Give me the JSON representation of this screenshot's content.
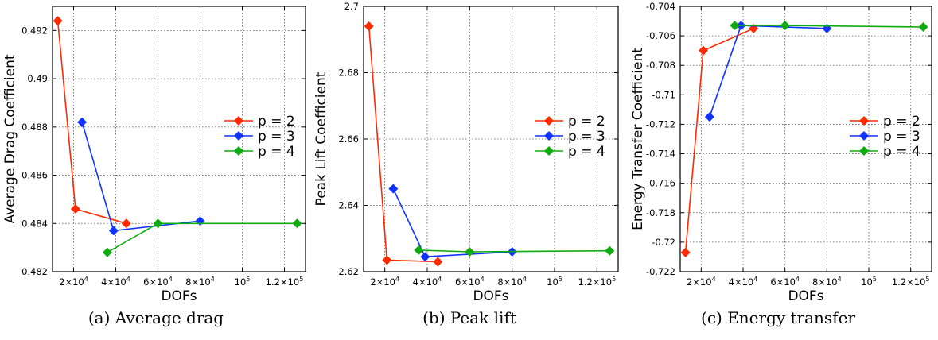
{
  "captions": [
    "(a) Average drag",
    "(b) Peak lift",
    "(c) Energy transfer"
  ],
  "chart_data": [
    {
      "type": "line",
      "xlabel": "DOFs",
      "ylabel": "Average Drag Coefficient",
      "xlim": [
        10000,
        130000
      ],
      "ylim": [
        0.482,
        0.493
      ],
      "x_ticks": [
        {
          "value": 20000,
          "label": "2×10",
          "exp": "4"
        },
        {
          "value": 40000,
          "label": "4×10",
          "exp": "4"
        },
        {
          "value": 60000,
          "label": "6×10",
          "exp": "4"
        },
        {
          "value": 80000,
          "label": "8×10",
          "exp": "4"
        },
        {
          "value": 100000,
          "label": "10",
          "exp": "5"
        },
        {
          "value": 120000,
          "label": "1.2×10",
          "exp": "5"
        }
      ],
      "y_ticks": [
        {
          "value": 0.482,
          "label": "0.482"
        },
        {
          "value": 0.484,
          "label": "0.484"
        },
        {
          "value": 0.486,
          "label": "0.486"
        },
        {
          "value": 0.488,
          "label": "0.488"
        },
        {
          "value": 0.49,
          "label": "0.49"
        },
        {
          "value": 0.492,
          "label": "0.492"
        }
      ],
      "grid": true,
      "legend_position": "right",
      "series": [
        {
          "name": "p = 2",
          "color": "#ff2a00",
          "x": [
            12500,
            20900,
            45000
          ],
          "y": [
            0.4924,
            0.4846,
            0.484
          ]
        },
        {
          "name": "p = 3",
          "color": "#1133ff",
          "x": [
            24000,
            39000,
            80000
          ],
          "y": [
            0.4882,
            0.4837,
            0.4841
          ]
        },
        {
          "name": "p = 4",
          "color": "#11aa11",
          "x": [
            36000,
            60000,
            126000
          ],
          "y": [
            0.4828,
            0.484,
            0.484
          ]
        }
      ]
    },
    {
      "type": "line",
      "xlabel": "DOFs",
      "ylabel": "Peak Lift Coefficient",
      "xlim": [
        10000,
        130000
      ],
      "ylim": [
        2.62,
        2.7
      ],
      "x_ticks": [
        {
          "value": 20000,
          "label": "2×10",
          "exp": "4"
        },
        {
          "value": 40000,
          "label": "4×10",
          "exp": "4"
        },
        {
          "value": 60000,
          "label": "6×10",
          "exp": "4"
        },
        {
          "value": 80000,
          "label": "8×10",
          "exp": "4"
        },
        {
          "value": 100000,
          "label": "10",
          "exp": "5"
        },
        {
          "value": 120000,
          "label": "1.2×10",
          "exp": "5"
        }
      ],
      "y_ticks": [
        {
          "value": 2.62,
          "label": "2.62"
        },
        {
          "value": 2.64,
          "label": "2.64"
        },
        {
          "value": 2.66,
          "label": "2.66"
        },
        {
          "value": 2.68,
          "label": "2.68"
        },
        {
          "value": 2.7,
          "label": "2.7"
        }
      ],
      "grid": true,
      "legend_position": "right",
      "series": [
        {
          "name": "p = 2",
          "color": "#ff2a00",
          "x": [
            12500,
            21000,
            45000
          ],
          "y": [
            2.694,
            2.6235,
            2.623
          ]
        },
        {
          "name": "p = 3",
          "color": "#1133ff",
          "x": [
            24000,
            39000,
            80000
          ],
          "y": [
            2.645,
            2.6245,
            2.626
          ]
        },
        {
          "name": "p = 4",
          "color": "#11aa11",
          "x": [
            36000,
            60000,
            126000
          ],
          "y": [
            2.6265,
            2.626,
            2.6263
          ]
        }
      ]
    },
    {
      "type": "line",
      "xlabel": "DOFs",
      "ylabel": "Energy Transfer Coefficient",
      "xlim": [
        10000,
        130000
      ],
      "ylim": [
        -0.722,
        -0.704
      ],
      "x_ticks": [
        {
          "value": 20000,
          "label": "2×10",
          "exp": "4"
        },
        {
          "value": 40000,
          "label": "4×10",
          "exp": "4"
        },
        {
          "value": 60000,
          "label": "6×10",
          "exp": "4"
        },
        {
          "value": 80000,
          "label": "8×10",
          "exp": "4"
        },
        {
          "value": 100000,
          "label": "10",
          "exp": "5"
        },
        {
          "value": 120000,
          "label": "1.2×10",
          "exp": "5"
        }
      ],
      "y_ticks": [
        {
          "value": -0.722,
          "label": "-0.722"
        },
        {
          "value": -0.72,
          "label": "-0.72"
        },
        {
          "value": -0.718,
          "label": "-0.718"
        },
        {
          "value": -0.716,
          "label": "-0.716"
        },
        {
          "value": -0.714,
          "label": "-0.714"
        },
        {
          "value": -0.712,
          "label": "-0.712"
        },
        {
          "value": -0.71,
          "label": "-0.71"
        },
        {
          "value": -0.708,
          "label": "-0.708"
        },
        {
          "value": -0.706,
          "label": "-0.706"
        },
        {
          "value": -0.704,
          "label": "-0.704"
        }
      ],
      "grid": true,
      "legend_position": "right",
      "series": [
        {
          "name": "p = 2",
          "color": "#ff2a00",
          "x": [
            12500,
            21000,
            45000
          ],
          "y": [
            -0.7207,
            -0.707,
            -0.7055
          ]
        },
        {
          "name": "p = 3",
          "color": "#1133ff",
          "x": [
            24000,
            39000,
            80000
          ],
          "y": [
            -0.7115,
            -0.7053,
            -0.7055
          ]
        },
        {
          "name": "p = 4",
          "color": "#11aa11",
          "x": [
            36000,
            60000,
            126000
          ],
          "y": [
            -0.7053,
            -0.7053,
            -0.7054
          ]
        }
      ]
    }
  ]
}
